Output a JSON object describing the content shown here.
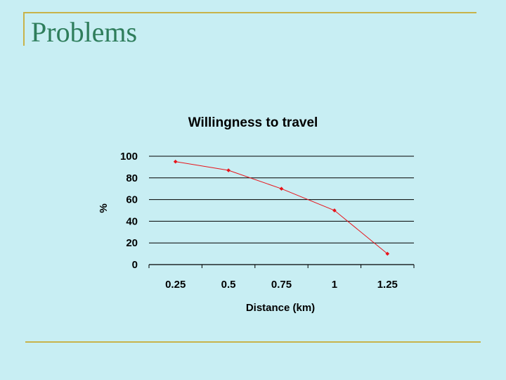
{
  "slide": {
    "title": "Problems"
  },
  "colors": {
    "background": "#c8eef3",
    "title": "#2e7d5b",
    "rule": "#c8b34a",
    "series": "#e8141b"
  },
  "chart_data": {
    "type": "line",
    "title": "Willingness to travel",
    "xlabel": "Distance (km)",
    "ylabel": "%",
    "categories": [
      "0.25",
      "0.5",
      "0.75",
      "1",
      "1.25"
    ],
    "series": [
      {
        "values": [
          95,
          87,
          70,
          50,
          10
        ]
      }
    ],
    "ylim": [
      0,
      100
    ],
    "yticks": [
      0,
      20,
      40,
      60,
      80,
      100
    ],
    "grid": "horizontal",
    "legend": "none"
  }
}
